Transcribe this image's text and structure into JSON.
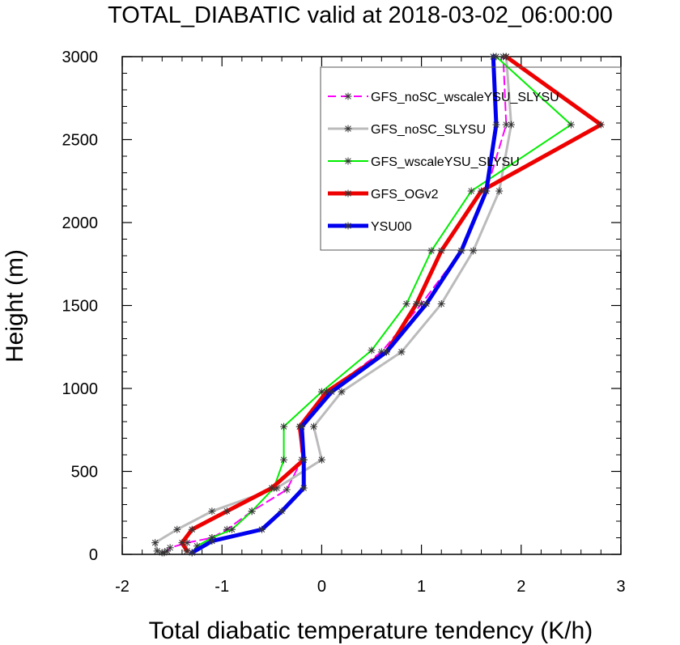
{
  "chart_data": {
    "type": "line",
    "title": "TOTAL_DIABATIC valid at 2018-03-02_06:00:00",
    "xlabel": "Total diabatic temperature tendency (K/h)",
    "ylabel": "Height (m)",
    "xlim": [
      -2,
      3
    ],
    "ylim": [
      0,
      3000
    ],
    "xticks": [
      "-2",
      "-1",
      "0",
      "1",
      "2",
      "3"
    ],
    "yticks": [
      "0",
      "500",
      "1000",
      "1500",
      "2000",
      "2500",
      "3000"
    ],
    "legend_position": "top-right",
    "series": [
      {
        "name": "GFS_noSC_wscaleYSU_SLYSU",
        "color": "#ff00ff",
        "dashed": true,
        "width": 2,
        "points": [
          [
            -1.58,
            10
          ],
          [
            -1.55,
            20
          ],
          [
            -1.52,
            40
          ],
          [
            -1.35,
            70
          ],
          [
            -1.1,
            100
          ],
          [
            -0.95,
            150
          ],
          [
            -0.7,
            260
          ],
          [
            -0.35,
            390
          ],
          [
            -0.2,
            570
          ],
          [
            -0.22,
            770
          ],
          [
            0.05,
            980
          ],
          [
            0.6,
            1220
          ],
          [
            1.0,
            1510
          ],
          [
            1.4,
            1830
          ],
          [
            1.65,
            2190
          ],
          [
            1.85,
            2590
          ],
          [
            1.82,
            3000
          ]
        ]
      },
      {
        "name": "GFS_noSC_SLYSU",
        "color": "#bbbbbb",
        "dashed": false,
        "width": 3,
        "points": [
          [
            -1.6,
            10
          ],
          [
            -1.65,
            20
          ],
          [
            -1.67,
            70
          ],
          [
            -1.45,
            150
          ],
          [
            -1.1,
            260
          ],
          [
            -0.45,
            400
          ],
          [
            0.0,
            570
          ],
          [
            -0.08,
            770
          ],
          [
            0.2,
            980
          ],
          [
            0.8,
            1220
          ],
          [
            1.2,
            1510
          ],
          [
            1.52,
            1830
          ],
          [
            1.78,
            2190
          ],
          [
            1.9,
            2590
          ],
          [
            1.85,
            3000
          ]
        ]
      },
      {
        "name": "GFS_wscaleYSU_SLYSU",
        "color": "#00ee00",
        "dashed": false,
        "width": 2,
        "points": [
          [
            -1.3,
            10
          ],
          [
            -1.25,
            50
          ],
          [
            -1.1,
            100
          ],
          [
            -0.9,
            150
          ],
          [
            -0.7,
            260
          ],
          [
            -0.48,
            400
          ],
          [
            -0.38,
            570
          ],
          [
            -0.38,
            770
          ],
          [
            0.0,
            980
          ],
          [
            0.5,
            1230
          ],
          [
            0.85,
            1510
          ],
          [
            1.1,
            1830
          ],
          [
            1.5,
            2190
          ],
          [
            2.5,
            2590
          ],
          [
            1.75,
            3000
          ]
        ]
      },
      {
        "name": "GFS_OGv2",
        "color": "#ee0000",
        "dashed": false,
        "width": 5,
        "points": [
          [
            -1.35,
            20
          ],
          [
            -1.4,
            70
          ],
          [
            -1.3,
            150
          ],
          [
            -0.95,
            260
          ],
          [
            -0.5,
            400
          ],
          [
            -0.18,
            570
          ],
          [
            -0.22,
            770
          ],
          [
            0.05,
            980
          ],
          [
            0.65,
            1220
          ],
          [
            0.95,
            1510
          ],
          [
            1.2,
            1830
          ],
          [
            1.6,
            2190
          ],
          [
            2.8,
            2590
          ],
          [
            1.85,
            3000
          ]
        ]
      },
      {
        "name": "YSU00",
        "color": "#0000ee",
        "dashed": false,
        "width": 5,
        "points": [
          [
            -1.3,
            10
          ],
          [
            -1.1,
            80
          ],
          [
            -0.6,
            150
          ],
          [
            -0.4,
            260
          ],
          [
            -0.18,
            400
          ],
          [
            -0.18,
            570
          ],
          [
            -0.2,
            770
          ],
          [
            0.1,
            980
          ],
          [
            0.65,
            1220
          ],
          [
            1.05,
            1510
          ],
          [
            1.4,
            1830
          ],
          [
            1.65,
            2190
          ],
          [
            1.75,
            2590
          ],
          [
            1.72,
            3000
          ]
        ]
      }
    ]
  }
}
